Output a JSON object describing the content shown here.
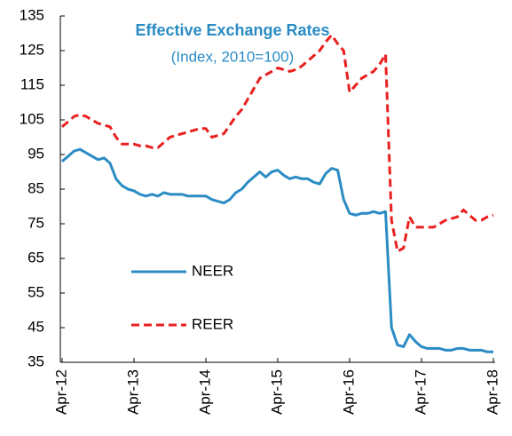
{
  "chart_data": {
    "type": "line",
    "title": "Effective Exchange Rates",
    "subtitle": "(Index, 2010=100)",
    "x": [
      "2012-04",
      "2012-05",
      "2012-06",
      "2012-07",
      "2012-08",
      "2012-09",
      "2012-10",
      "2012-11",
      "2012-12",
      "2013-01",
      "2013-02",
      "2013-03",
      "2013-04",
      "2013-05",
      "2013-06",
      "2013-07",
      "2013-08",
      "2013-09",
      "2013-10",
      "2013-11",
      "2013-12",
      "2014-01",
      "2014-02",
      "2014-03",
      "2014-04",
      "2014-05",
      "2014-06",
      "2014-07",
      "2014-08",
      "2014-09",
      "2014-10",
      "2014-11",
      "2014-12",
      "2015-01",
      "2015-02",
      "2015-03",
      "2015-04",
      "2015-05",
      "2015-06",
      "2015-07",
      "2015-08",
      "2015-09",
      "2015-10",
      "2015-11",
      "2015-12",
      "2016-01",
      "2016-02",
      "2016-03",
      "2016-04",
      "2016-05",
      "2016-06",
      "2016-07",
      "2016-08",
      "2016-09",
      "2016-10",
      "2016-11",
      "2016-12",
      "2017-01",
      "2017-02",
      "2017-03",
      "2017-04",
      "2017-05",
      "2017-06",
      "2017-07",
      "2017-08",
      "2017-09",
      "2017-10",
      "2017-11",
      "2017-12",
      "2018-01",
      "2018-02",
      "2018-03",
      "2018-04"
    ],
    "series": [
      {
        "name": "NEER",
        "color": "#2b8cc4",
        "dash": false,
        "values": [
          93,
          94.5,
          96,
          96.5,
          95.5,
          94.5,
          93.5,
          94,
          92.5,
          88,
          86,
          85,
          84.5,
          83.5,
          83,
          83.5,
          83,
          84,
          83.5,
          83.5,
          83.5,
          83,
          83,
          83,
          83,
          82,
          81.5,
          81,
          82,
          84,
          85,
          87,
          88.5,
          90,
          88.5,
          90,
          90.5,
          89,
          88,
          88.5,
          88,
          88,
          87,
          86.5,
          89.5,
          91,
          90.5,
          82,
          78,
          77.5,
          78,
          78,
          78.5,
          78,
          78.5,
          45,
          40,
          39.5,
          43,
          41,
          39.5,
          39,
          39,
          39,
          38.5,
          38.5,
          39,
          39,
          38.5,
          38.5,
          38.5,
          38,
          38
        ]
      },
      {
        "name": "REER",
        "color": "#e8201f",
        "dash": true,
        "values": [
          103,
          104.5,
          106,
          106.5,
          106,
          105,
          104,
          103.5,
          103,
          100,
          98,
          98,
          98,
          97.5,
          97.5,
          97,
          97,
          98.5,
          100,
          100.5,
          101,
          101.5,
          102,
          102.5,
          102.5,
          100,
          100.5,
          101,
          103.5,
          106,
          108,
          111,
          114,
          117,
          118,
          119,
          120,
          119.5,
          119,
          119.5,
          120.5,
          122,
          123.5,
          125,
          127.5,
          129.5,
          127,
          125,
          113,
          115,
          117,
          118,
          119,
          121,
          124,
          76,
          67,
          68,
          77,
          74,
          74,
          74,
          74,
          75,
          76,
          76.5,
          77,
          79,
          77.5,
          76,
          76,
          77,
          77.5
        ]
      }
    ],
    "xlim": [
      "2012-04",
      "2018-04"
    ],
    "xticks": [
      {
        "value": "2012-04",
        "label": "Apr-12"
      },
      {
        "value": "2013-04",
        "label": "Apr-13"
      },
      {
        "value": "2014-04",
        "label": "Apr-14"
      },
      {
        "value": "2015-04",
        "label": "Apr-15"
      },
      {
        "value": "2016-04",
        "label": "Apr-16"
      },
      {
        "value": "2017-04",
        "label": "Apr-17"
      },
      {
        "value": "2018-04",
        "label": "Apr-18"
      }
    ],
    "ylim": [
      35,
      135
    ],
    "yticks": [
      35,
      45,
      55,
      65,
      75,
      85,
      95,
      105,
      115,
      125,
      135
    ],
    "grid": false,
    "legend": "center left"
  }
}
